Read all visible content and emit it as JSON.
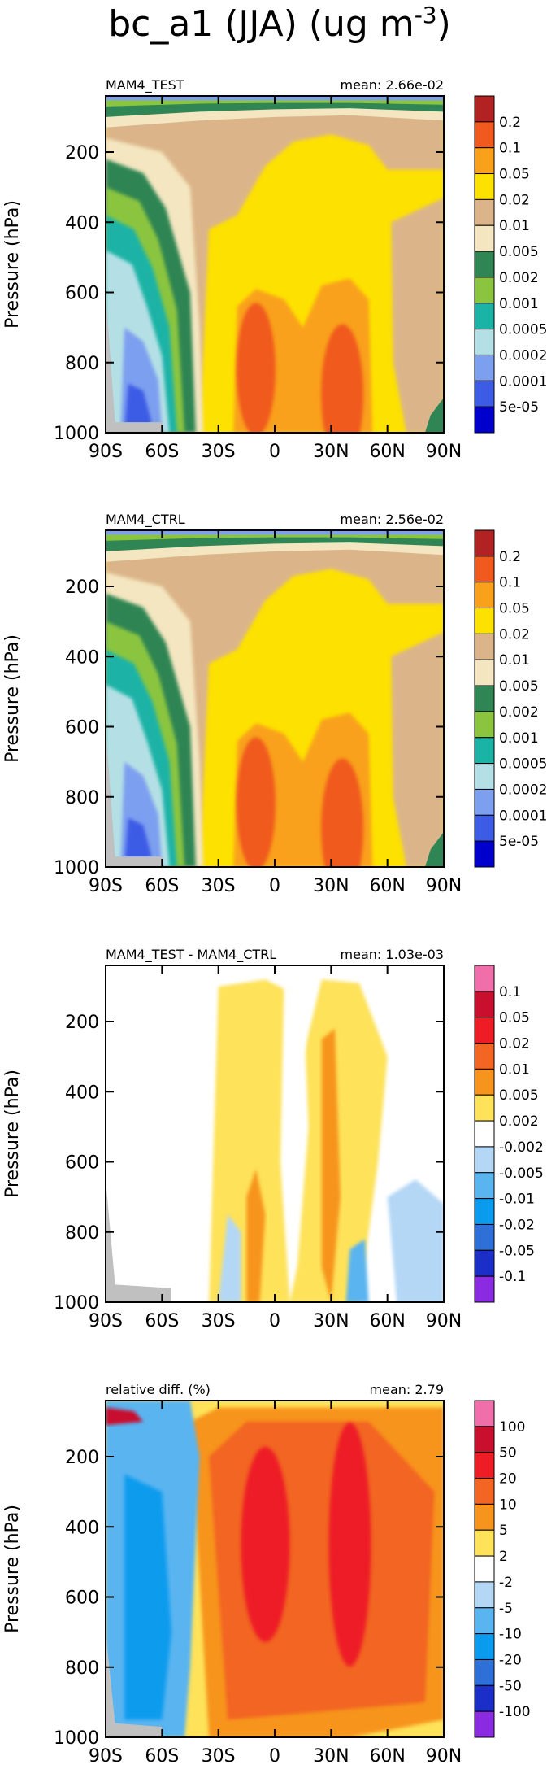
{
  "title_main": "bc_a1 (JJA) (ug m",
  "title_exp": "-3",
  "title_close": ")",
  "chart_data": [
    {
      "type": "heatmap",
      "title": "MAM4_TEST",
      "mean_label": "mean: 2.66e-02",
      "xlabel": "",
      "ylabel": "Pressure (hPa)",
      "x_ticks": [
        "90S",
        "60S",
        "30S",
        "0",
        "30N",
        "60N",
        "90N"
      ],
      "y_ticks": [
        "200",
        "400",
        "600",
        "800",
        "1000"
      ],
      "xlim": [
        -90,
        90
      ],
      "ylim": [
        1000,
        40
      ],
      "y_reversed": true,
      "colorbar_levels": [
        "0.2",
        "0.1",
        "0.05",
        "0.02",
        "0.01",
        "0.005",
        "0.002",
        "0.001",
        "0.0005",
        "0.0002",
        "0.0001",
        "5e-05"
      ],
      "colorbar_colors": [
        "#b22222",
        "#f05a1e",
        "#f9a11b",
        "#fde100",
        "#dbb589",
        "#f4e6c0",
        "#2f8553",
        "#8bc53f",
        "#1ab3a6",
        "#b4e0e5",
        "#7d9ff0",
        "#3d5ce6",
        "#0000cd"
      ],
      "regions": [
        {
          "level": "0.01",
          "approx": "broad band 30S-60N above 300 hPa and high latitudes NH"
        },
        {
          "level": "0.02",
          "approx": "tropics/subtropics 20S-60N from 150 to 1000 hPa"
        },
        {
          "level": "0.05",
          "approx": "lower troposphere 20S-50N below 600 hPa"
        },
        {
          "level": "0.1",
          "approx": "cores near 10S and 35N below 700 hPa"
        },
        {
          "level": "5e-05",
          "approx": "Antarctic surface near 80S-70S"
        }
      ]
    },
    {
      "type": "heatmap",
      "title": "MAM4_CTRL",
      "mean_label": "mean: 2.56e-02",
      "xlabel": "",
      "ylabel": "Pressure (hPa)",
      "x_ticks": [
        "90S",
        "60S",
        "30S",
        "0",
        "30N",
        "60N",
        "90N"
      ],
      "y_ticks": [
        "200",
        "400",
        "600",
        "800",
        "1000"
      ],
      "xlim": [
        -90,
        90
      ],
      "ylim": [
        1000,
        40
      ],
      "y_reversed": true,
      "colorbar_levels": [
        "0.2",
        "0.1",
        "0.05",
        "0.02",
        "0.01",
        "0.005",
        "0.002",
        "0.001",
        "0.0005",
        "0.0002",
        "0.0001",
        "5e-05"
      ],
      "colorbar_colors": [
        "#b22222",
        "#f05a1e",
        "#f9a11b",
        "#fde100",
        "#dbb589",
        "#f4e6c0",
        "#2f8553",
        "#8bc53f",
        "#1ab3a6",
        "#b4e0e5",
        "#7d9ff0",
        "#3d5ce6",
        "#0000cd"
      ]
    },
    {
      "type": "heatmap",
      "title": "MAM4_TEST - MAM4_CTRL",
      "mean_label": "mean: 1.03e-03",
      "xlabel": "",
      "ylabel": "Pressure (hPa)",
      "x_ticks": [
        "90S",
        "60S",
        "30S",
        "0",
        "30N",
        "60N",
        "90N"
      ],
      "y_ticks": [
        "200",
        "400",
        "600",
        "800",
        "1000"
      ],
      "xlim": [
        -90,
        90
      ],
      "ylim": [
        1000,
        40
      ],
      "y_reversed": true,
      "colorbar_levels": [
        "0.1",
        "0.05",
        "0.02",
        "0.01",
        "0.005",
        "0.002",
        "-0.002",
        "-0.005",
        "-0.01",
        "-0.02",
        "-0.05",
        "-0.1"
      ],
      "colorbar_colors": [
        "#f06eaa",
        "#c8102e",
        "#ee1c25",
        "#f26522",
        "#f7941d",
        "#fde25a",
        "#ffffff",
        "#b3d7f5",
        "#5ab4f0",
        "#0b9bee",
        "#2f6fd8",
        "#1b2fc8",
        "#8a2be2"
      ]
    },
    {
      "type": "heatmap",
      "title": "relative diff. (%)",
      "mean_label": "mean:  2.79",
      "xlabel": "",
      "ylabel": "Pressure (hPa)",
      "x_ticks": [
        "90S",
        "60S",
        "30S",
        "0",
        "30N",
        "60N",
        "90N"
      ],
      "y_ticks": [
        "200",
        "400",
        "600",
        "800",
        "1000"
      ],
      "xlim": [
        -90,
        90
      ],
      "ylim": [
        1000,
        40
      ],
      "y_reversed": true,
      "colorbar_levels": [
        "100",
        "50",
        "20",
        "10",
        "5",
        "2",
        "-2",
        "-5",
        "-10",
        "-20",
        "-50",
        "-100"
      ],
      "colorbar_colors": [
        "#f06eaa",
        "#c8102e",
        "#ee1c25",
        "#f26522",
        "#f7941d",
        "#fde25a",
        "#ffffff",
        "#b3d7f5",
        "#5ab4f0",
        "#0b9bee",
        "#2f6fd8",
        "#1b2fc8",
        "#8a2be2"
      ]
    }
  ]
}
